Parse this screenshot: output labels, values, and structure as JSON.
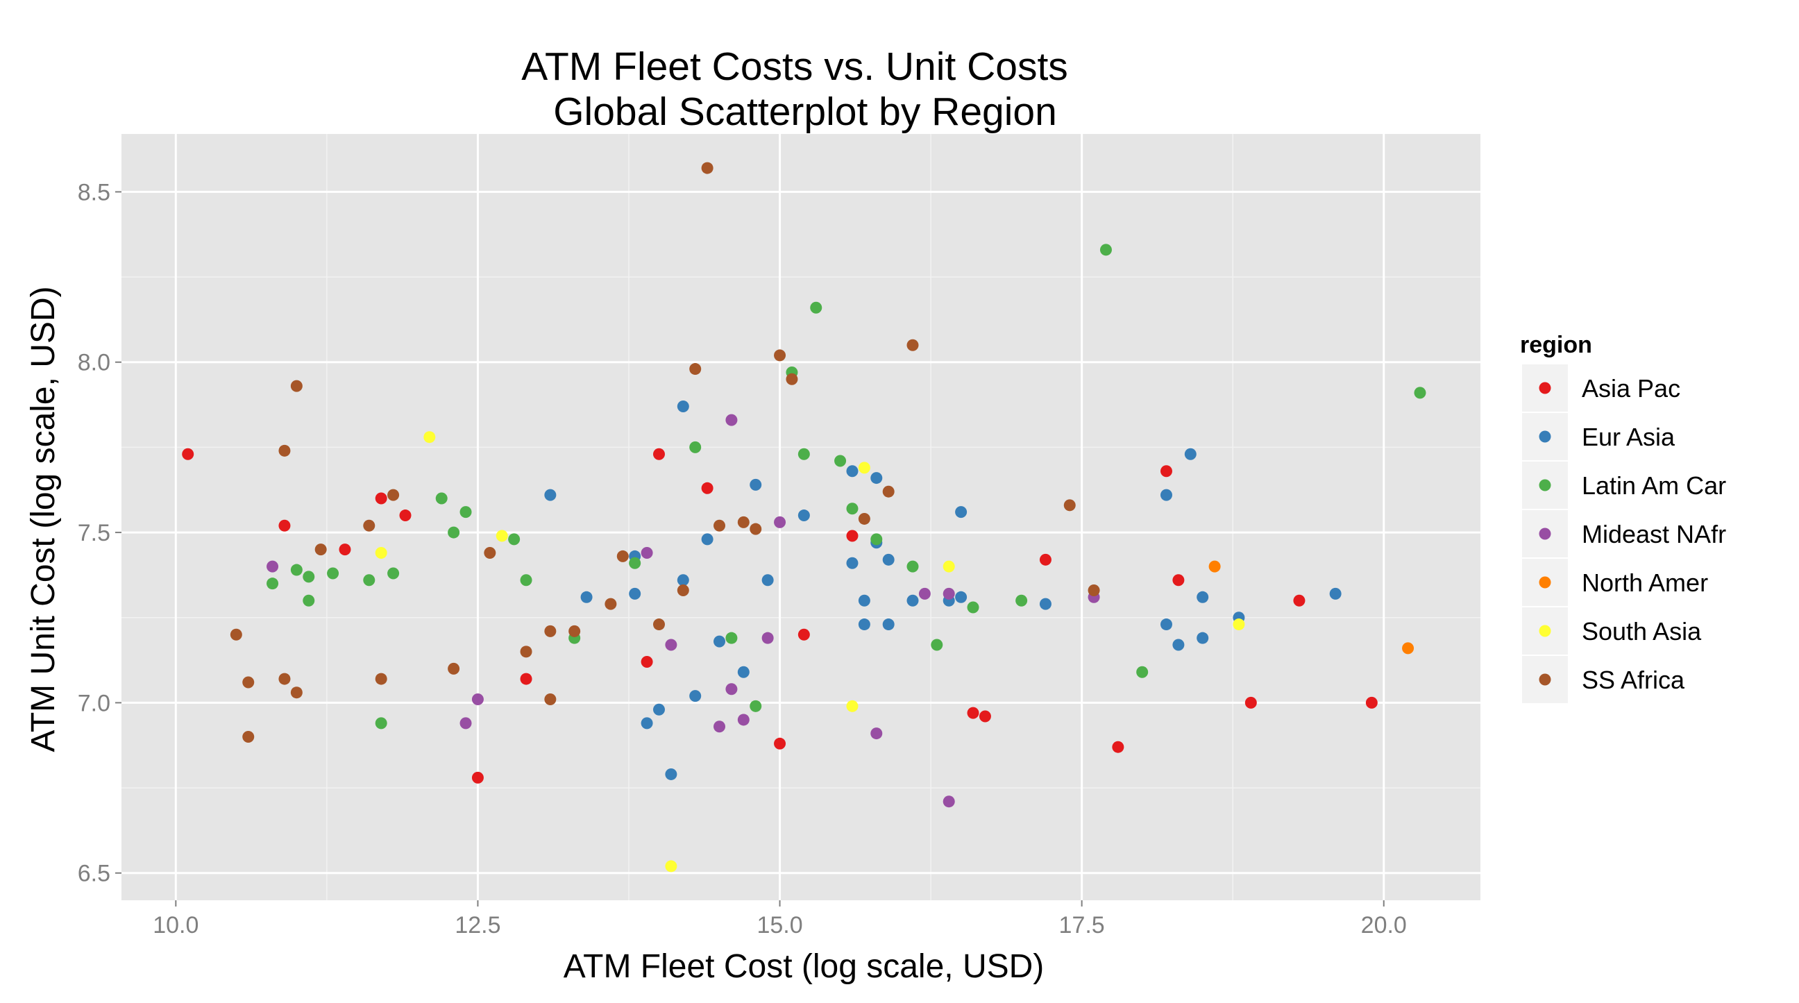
{
  "chart_data": {
    "type": "scatter",
    "title_lines": [
      "ATM Fleet Costs vs. Unit Costs",
      "Global Scatterplot by Region"
    ],
    "xlabel": "ATM Fleet Cost (log scale, USD)",
    "ylabel": "ATM Unit Cost (log scale, USD)",
    "xlim": [
      9.55,
      20.8
    ],
    "ylim": [
      6.42,
      8.67
    ],
    "x_ticks": [
      10.0,
      12.5,
      15.0,
      17.5,
      20.0
    ],
    "x_tick_labels": [
      "10.0",
      "12.5",
      "15.0",
      "17.5",
      "20.0"
    ],
    "y_ticks": [
      6.5,
      7.0,
      7.5,
      8.0,
      8.5
    ],
    "y_tick_labels": [
      "6.5",
      "7.0",
      "7.5",
      "8.0",
      "8.5"
    ],
    "grid": true,
    "legend_title": "region",
    "legend_position": "right",
    "series": [
      {
        "name": "Asia Pac",
        "color": "#e41a1c",
        "points": [
          [
            10.1,
            7.73
          ],
          [
            10.9,
            7.52
          ],
          [
            11.4,
            7.45
          ],
          [
            11.7,
            7.6
          ],
          [
            11.9,
            7.55
          ],
          [
            12.5,
            6.78
          ],
          [
            12.9,
            7.07
          ],
          [
            13.9,
            7.12
          ],
          [
            14.0,
            7.73
          ],
          [
            14.4,
            7.63
          ],
          [
            15.0,
            6.88
          ],
          [
            15.2,
            7.2
          ],
          [
            15.6,
            7.49
          ],
          [
            16.6,
            6.97
          ],
          [
            16.7,
            6.96
          ],
          [
            17.2,
            7.42
          ],
          [
            17.8,
            6.87
          ],
          [
            18.2,
            7.68
          ],
          [
            18.3,
            7.36
          ],
          [
            18.9,
            7.0
          ],
          [
            19.3,
            7.3
          ],
          [
            19.9,
            7.0
          ]
        ]
      },
      {
        "name": "Eur Asia",
        "color": "#377eb8",
        "points": [
          [
            13.1,
            7.61
          ],
          [
            13.4,
            7.31
          ],
          [
            13.8,
            7.43
          ],
          [
            13.8,
            7.32
          ],
          [
            13.9,
            6.94
          ],
          [
            14.0,
            6.98
          ],
          [
            14.1,
            6.79
          ],
          [
            14.2,
            7.36
          ],
          [
            14.2,
            7.87
          ],
          [
            14.3,
            7.02
          ],
          [
            14.4,
            7.48
          ],
          [
            14.5,
            7.18
          ],
          [
            14.7,
            7.09
          ],
          [
            14.8,
            7.64
          ],
          [
            14.9,
            7.36
          ],
          [
            15.2,
            7.55
          ],
          [
            15.6,
            7.68
          ],
          [
            15.6,
            7.41
          ],
          [
            15.7,
            7.3
          ],
          [
            15.7,
            7.23
          ],
          [
            15.8,
            7.66
          ],
          [
            15.8,
            7.47
          ],
          [
            15.9,
            7.42
          ],
          [
            15.9,
            7.23
          ],
          [
            16.1,
            7.3
          ],
          [
            16.4,
            7.3
          ],
          [
            16.5,
            7.56
          ],
          [
            16.5,
            7.31
          ],
          [
            17.2,
            7.29
          ],
          [
            18.2,
            7.61
          ],
          [
            18.2,
            7.23
          ],
          [
            18.3,
            7.17
          ],
          [
            18.4,
            7.73
          ],
          [
            18.5,
            7.31
          ],
          [
            18.5,
            7.19
          ],
          [
            18.8,
            7.25
          ],
          [
            19.6,
            7.32
          ]
        ]
      },
      {
        "name": "Latin Am Car",
        "color": "#4daf4a",
        "points": [
          [
            10.8,
            7.35
          ],
          [
            11.0,
            7.39
          ],
          [
            11.1,
            7.37
          ],
          [
            11.1,
            7.3
          ],
          [
            11.3,
            7.38
          ],
          [
            11.6,
            7.36
          ],
          [
            11.7,
            6.94
          ],
          [
            11.8,
            7.38
          ],
          [
            12.2,
            7.6
          ],
          [
            12.3,
            7.5
          ],
          [
            12.4,
            7.56
          ],
          [
            12.8,
            7.48
          ],
          [
            12.9,
            7.36
          ],
          [
            13.3,
            7.19
          ],
          [
            13.8,
            7.41
          ],
          [
            14.3,
            7.75
          ],
          [
            14.6,
            7.19
          ],
          [
            14.8,
            6.99
          ],
          [
            15.1,
            7.97
          ],
          [
            15.2,
            7.73
          ],
          [
            15.3,
            8.16
          ],
          [
            15.5,
            7.71
          ],
          [
            15.6,
            7.57
          ],
          [
            15.8,
            7.48
          ],
          [
            16.1,
            7.4
          ],
          [
            16.3,
            7.17
          ],
          [
            16.6,
            7.28
          ],
          [
            17.0,
            7.3
          ],
          [
            17.7,
            8.33
          ],
          [
            18.0,
            7.09
          ],
          [
            20.3,
            7.91
          ]
        ]
      },
      {
        "name": "Mideast NAfr",
        "color": "#984ea3",
        "points": [
          [
            10.8,
            7.4
          ],
          [
            12.4,
            6.94
          ],
          [
            12.5,
            7.01
          ],
          [
            13.9,
            7.44
          ],
          [
            14.1,
            7.17
          ],
          [
            14.5,
            6.93
          ],
          [
            14.6,
            7.04
          ],
          [
            14.6,
            7.83
          ],
          [
            14.7,
            6.95
          ],
          [
            14.9,
            7.19
          ],
          [
            15.0,
            7.53
          ],
          [
            15.8,
            6.91
          ],
          [
            16.2,
            7.32
          ],
          [
            16.4,
            7.32
          ],
          [
            16.4,
            6.71
          ],
          [
            17.6,
            7.31
          ]
        ]
      },
      {
        "name": "North Amer",
        "color": "#ff7f00",
        "points": [
          [
            18.6,
            7.4
          ],
          [
            20.2,
            7.16
          ]
        ]
      },
      {
        "name": "South Asia",
        "color": "#ffff33",
        "points": [
          [
            11.7,
            7.44
          ],
          [
            12.1,
            7.78
          ],
          [
            12.7,
            7.49
          ],
          [
            14.1,
            6.52
          ],
          [
            15.6,
            6.99
          ],
          [
            15.7,
            7.69
          ],
          [
            16.4,
            7.4
          ],
          [
            18.8,
            7.23
          ]
        ]
      },
      {
        "name": "SS Africa",
        "color": "#a65628",
        "points": [
          [
            10.5,
            7.2
          ],
          [
            10.6,
            7.06
          ],
          [
            10.6,
            6.9
          ],
          [
            10.9,
            7.07
          ],
          [
            10.9,
            7.74
          ],
          [
            11.0,
            7.93
          ],
          [
            11.0,
            7.03
          ],
          [
            11.2,
            7.45
          ],
          [
            11.6,
            7.52
          ],
          [
            11.7,
            7.07
          ],
          [
            11.8,
            7.61
          ],
          [
            12.3,
            7.1
          ],
          [
            12.6,
            7.44
          ],
          [
            12.9,
            7.15
          ],
          [
            13.1,
            7.21
          ],
          [
            13.1,
            7.01
          ],
          [
            13.3,
            7.21
          ],
          [
            13.6,
            7.29
          ],
          [
            13.7,
            7.43
          ],
          [
            14.0,
            7.23
          ],
          [
            14.2,
            7.33
          ],
          [
            14.3,
            7.98
          ],
          [
            14.4,
            8.57
          ],
          [
            14.5,
            7.52
          ],
          [
            14.7,
            7.53
          ],
          [
            14.8,
            7.51
          ],
          [
            15.0,
            8.02
          ],
          [
            15.1,
            7.95
          ],
          [
            15.7,
            7.54
          ],
          [
            15.9,
            7.62
          ],
          [
            16.1,
            8.05
          ],
          [
            17.4,
            7.58
          ],
          [
            17.6,
            7.33
          ]
        ]
      }
    ]
  }
}
